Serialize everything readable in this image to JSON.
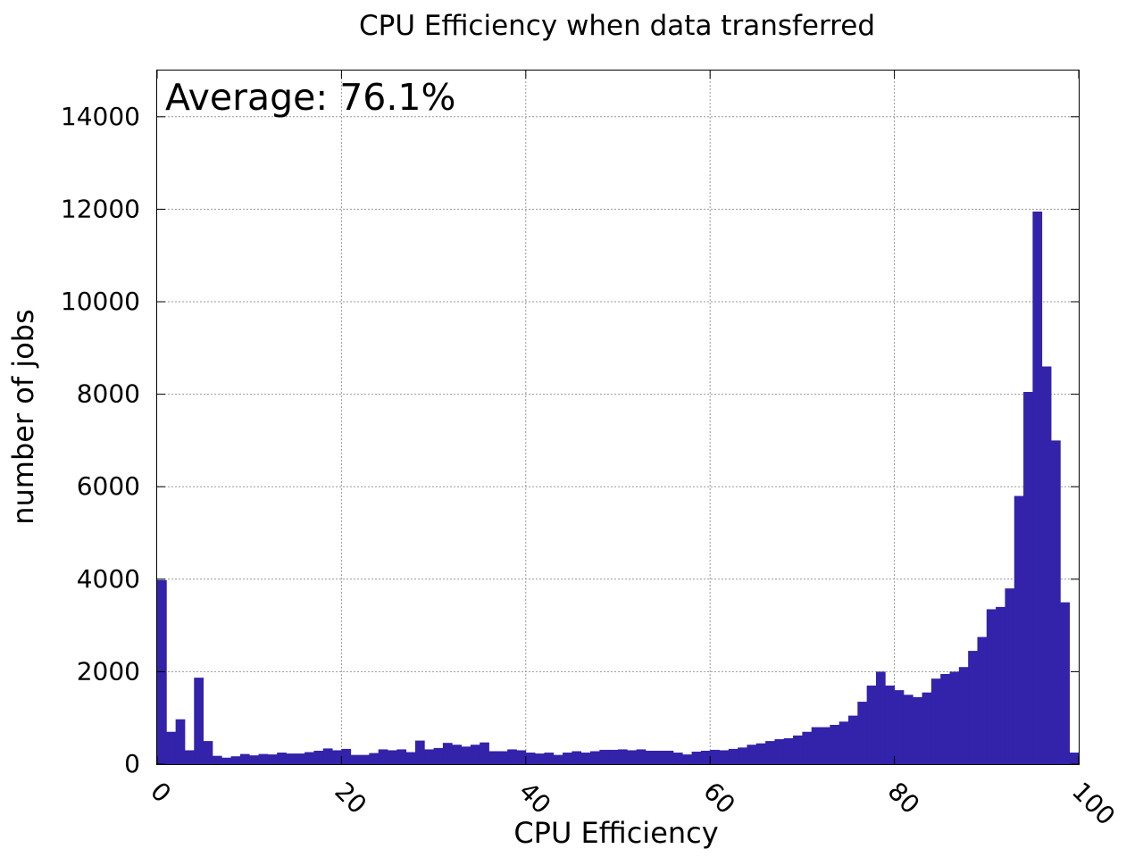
{
  "chart_data": {
    "type": "bar",
    "title": "CPU Efficiency when data transferred",
    "xlabel": "CPU Efficiency",
    "ylabel": "number of jobs",
    "annotation": "Average: 76.1%",
    "xlim": [
      0,
      100
    ],
    "ylim": [
      0,
      15000
    ],
    "grid": true,
    "bar_color": "#3322aa",
    "x_ticks": [
      0,
      20,
      40,
      60,
      80,
      100
    ],
    "y_ticks": [
      0,
      2000,
      4000,
      6000,
      8000,
      10000,
      12000,
      14000
    ],
    "bin_width": 1,
    "x": [
      0,
      1,
      2,
      3,
      4,
      5,
      6,
      7,
      8,
      9,
      10,
      11,
      12,
      13,
      14,
      15,
      16,
      17,
      18,
      19,
      20,
      21,
      22,
      23,
      24,
      25,
      26,
      27,
      28,
      29,
      30,
      31,
      32,
      33,
      34,
      35,
      36,
      37,
      38,
      39,
      40,
      41,
      42,
      43,
      44,
      45,
      46,
      47,
      48,
      49,
      50,
      51,
      52,
      53,
      54,
      55,
      56,
      57,
      58,
      59,
      60,
      61,
      62,
      63,
      64,
      65,
      66,
      67,
      68,
      69,
      70,
      71,
      72,
      73,
      74,
      75,
      76,
      77,
      78,
      79,
      80,
      81,
      82,
      83,
      84,
      85,
      86,
      87,
      88,
      89,
      90,
      91,
      92,
      93,
      94,
      95,
      96,
      97,
      98,
      99
    ],
    "values": [
      3980,
      700,
      970,
      300,
      1870,
      500,
      180,
      140,
      170,
      220,
      190,
      220,
      210,
      250,
      230,
      230,
      260,
      290,
      340,
      300,
      330,
      200,
      200,
      240,
      320,
      300,
      320,
      260,
      510,
      320,
      350,
      460,
      420,
      380,
      420,
      470,
      280,
      280,
      320,
      300,
      250,
      230,
      250,
      200,
      250,
      280,
      250,
      280,
      310,
      310,
      320,
      300,
      320,
      290,
      290,
      290,
      250,
      210,
      270,
      290,
      310,
      300,
      330,
      360,
      420,
      450,
      500,
      540,
      560,
      620,
      700,
      800,
      800,
      850,
      920,
      1050,
      1350,
      1700,
      2000,
      1700,
      1600,
      1500,
      1450,
      1550,
      1850,
      1950,
      2000,
      2100,
      2450,
      2750,
      3350,
      3400,
      3800,
      5800,
      8050,
      11950,
      8600,
      7000,
      3500,
      250
    ]
  }
}
